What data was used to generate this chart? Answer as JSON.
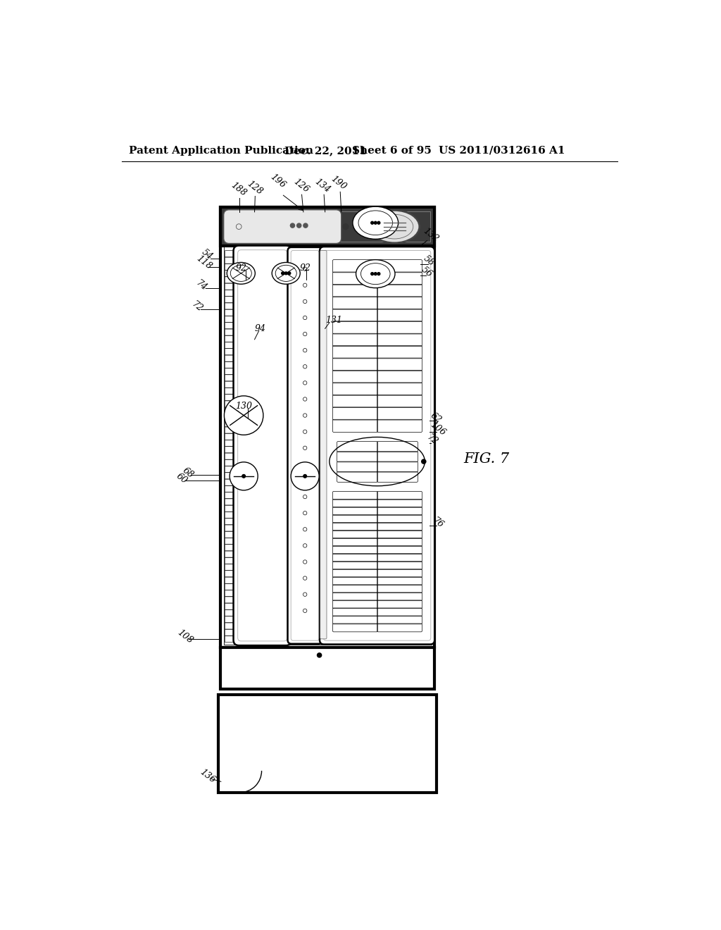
{
  "bg_color": "#ffffff",
  "header_text": "Patent Application Publication",
  "header_date": "Dec. 22, 2011",
  "header_sheet": "Sheet 6 of 95",
  "header_patent": "US 2011/0312616 A1",
  "fig_label": "FIG. 7",
  "title_fontsize": 11,
  "annotation_fontsize": 9
}
